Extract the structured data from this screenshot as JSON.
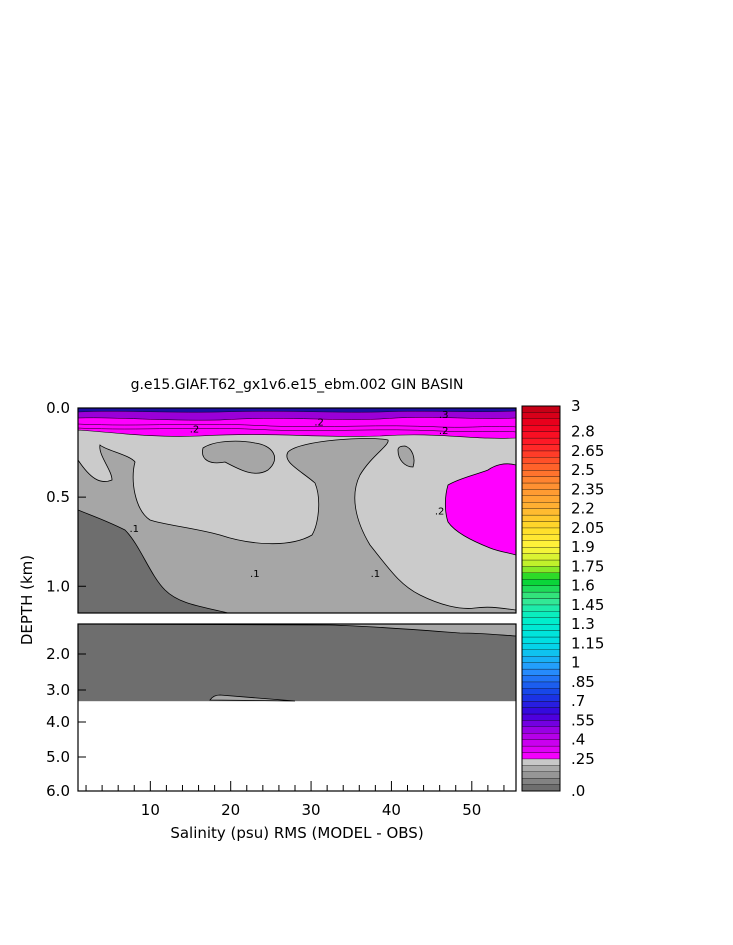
{
  "chart_data": {
    "type": "heatmap",
    "title": "g.e15.GIAF.T62_gx1v6.e15_ebm.002 GIN BASIN",
    "xlabel": "Salinity (psu) RMS (MODEL - OBS)",
    "ylabel": "DEPTH (km)",
    "upper_panel": {
      "ylim": [
        0.0,
        1.15
      ],
      "y_ticks": [
        {
          "value": 0.0,
          "label": "0.0"
        },
        {
          "value": 0.5,
          "label": "0.5"
        },
        {
          "value": 1.0,
          "label": "1.0"
        }
      ]
    },
    "lower_panel": {
      "ylim": [
        1.15,
        6.0
      ],
      "y_ticks": [
        {
          "value": 2.0,
          "label": "2.0"
        },
        {
          "value": 3.0,
          "label": "3.0"
        },
        {
          "value": 4.0,
          "label": "4.0"
        },
        {
          "value": 5.0,
          "label": "5.0"
        },
        {
          "value": 6.0,
          "label": "6.0"
        }
      ],
      "data_bottom_depth": 3.35
    },
    "xlim": [
      1,
      55.5
    ],
    "x_ticks": [
      {
        "value": 10,
        "label": "10"
      },
      {
        "value": 20,
        "label": "20"
      },
      {
        "value": 30,
        "label": "30"
      },
      {
        "value": 40,
        "label": "40"
      },
      {
        "value": 50,
        "label": "50"
      }
    ],
    "x_minor_step": 2,
    "contour_labels": [
      {
        "x": 15.5,
        "depth": 0.12,
        "text": ".2"
      },
      {
        "x": 31.0,
        "depth": 0.08,
        "text": ".2"
      },
      {
        "x": 46.5,
        "depth": 0.13,
        "text": ".2"
      },
      {
        "x": 46.5,
        "depth": 0.04,
        "text": ".3"
      },
      {
        "x": 8.0,
        "depth": 0.68,
        "text": ".1"
      },
      {
        "x": 23.0,
        "depth": 0.93,
        "text": ".1"
      },
      {
        "x": 38.0,
        "depth": 0.93,
        "text": ".1"
      },
      {
        "x": 46.0,
        "depth": 0.58,
        "text": ".2"
      }
    ],
    "colorbar": {
      "labels": [
        "3",
        "2.8",
        "2.65",
        "2.5",
        "2.35",
        "2.2",
        "2.05",
        "1.9",
        "1.75",
        "1.6",
        "1.45",
        "1.3",
        "1.15",
        "1",
        ".85",
        ".7",
        ".55",
        ".4",
        ".25",
        ".0"
      ],
      "label_values": [
        3.0,
        2.8,
        2.65,
        2.5,
        2.35,
        2.2,
        2.05,
        1.9,
        1.75,
        1.6,
        1.45,
        1.3,
        1.15,
        1.0,
        0.85,
        0.7,
        0.55,
        0.4,
        0.25,
        0.0
      ],
      "range": [
        0.0,
        3.0
      ],
      "level_step": 0.05,
      "gray_band_max": 0.25
    },
    "region_colors": {
      "deep": "#6e6e6e",
      "mid": "#a6a6a6",
      "light": "#cbcbcb",
      "high": "#ff00ff",
      "surface_dark": "#1a0fa0",
      "surface_purple": "#9a00d8"
    }
  }
}
